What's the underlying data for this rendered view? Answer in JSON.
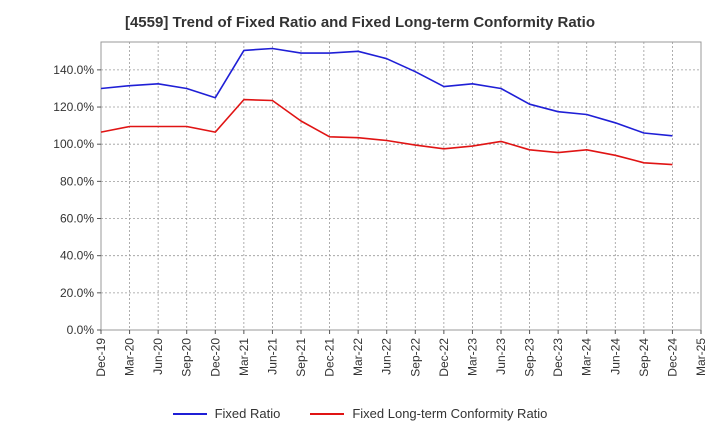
{
  "chart_data": {
    "type": "line",
    "title": "[4559]  Trend of Fixed Ratio and Fixed Long-term Conformity Ratio",
    "xlabel": "",
    "ylabel": "",
    "categories": [
      "Dec-19",
      "Mar-20",
      "Jun-20",
      "Sep-20",
      "Dec-20",
      "Mar-21",
      "Jun-21",
      "Sep-21",
      "Dec-21",
      "Mar-22",
      "Jun-22",
      "Sep-22",
      "Dec-22",
      "Mar-23",
      "Jun-23",
      "Sep-23",
      "Dec-23",
      "Mar-24",
      "Jun-24",
      "Sep-24",
      "Dec-24",
      "Mar-25"
    ],
    "y_ticks": [
      "0.0%",
      "20.0%",
      "40.0%",
      "60.0%",
      "80.0%",
      "100.0%",
      "120.0%",
      "140.0%"
    ],
    "ylim": [
      0,
      155
    ],
    "grid": true,
    "legend_position": "bottom",
    "series": [
      {
        "name": "Fixed Ratio",
        "color": "#1f1fd6",
        "values": [
          130.0,
          131.5,
          132.5,
          130.0,
          125.0,
          150.5,
          151.5,
          149.0,
          149.0,
          150.0,
          146.0,
          139.0,
          131.0,
          132.5,
          130.0,
          121.5,
          117.5,
          116.0,
          111.5,
          106.0,
          104.5,
          null
        ]
      },
      {
        "name": "Fixed Long-term Conformity Ratio",
        "color": "#e01414",
        "values": [
          106.5,
          109.5,
          109.5,
          109.5,
          106.5,
          124.0,
          123.5,
          112.5,
          104.0,
          103.5,
          102.0,
          99.5,
          97.5,
          99.0,
          101.5,
          97.0,
          95.5,
          97.0,
          94.0,
          90.0,
          89.0,
          null
        ]
      }
    ]
  }
}
